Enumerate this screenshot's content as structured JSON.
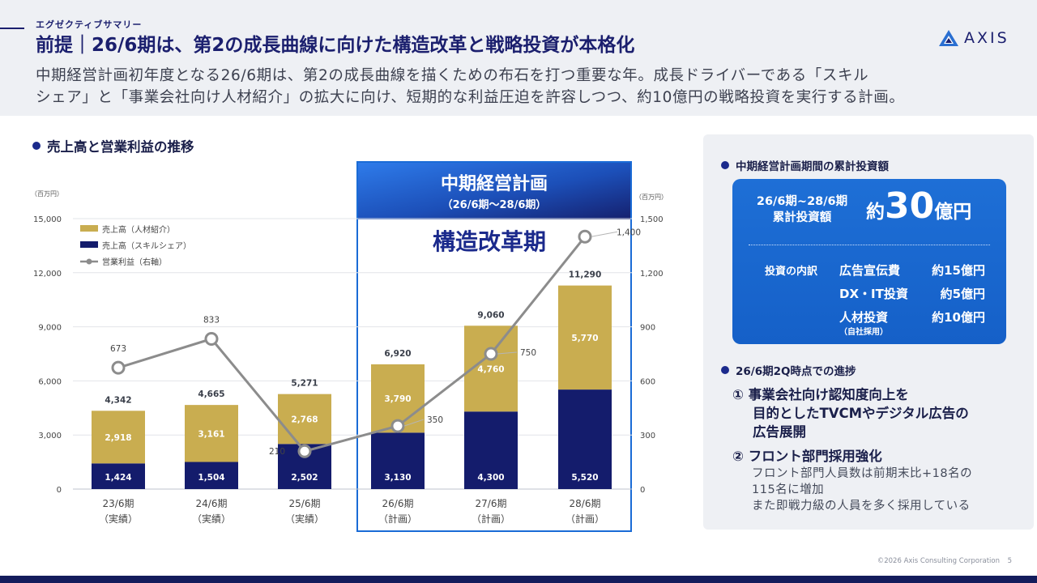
{
  "header": {
    "section_label": "エグゼクティブサマリー",
    "title": "前提｜26/6期は、第2の成長曲線に向けた構造改革と戦略投資が本格化",
    "subtitle_line1": "中期経営計画初年度となる26/6期は、第2の成長曲線を描くための布石を打つ重要な年。成長ドライバーである「スキル",
    "subtitle_line2": "シェア」と「事業会社向け人材紹介」の拡大に向け、短期的な利益圧迫を許容しつつ、約10億円の戦略投資を実行する計画。"
  },
  "logo": {
    "text": "AXIS",
    "icon": "axis-triangle-logo"
  },
  "chart_heading": "売上高と営業利益の推移",
  "chart_data": {
    "type": "bar",
    "categories": [
      "23/6期",
      "24/6期",
      "25/6期",
      "26/6期",
      "27/6期",
      "28/6期"
    ],
    "category_sublabels": [
      "（実績）",
      "（実績）",
      "（実績）",
      "（計画）",
      "（計画）",
      "（計画）"
    ],
    "stacked": true,
    "series": [
      {
        "name": "売上高（スキルシェア）",
        "type": "bar",
        "color": "#141c6c",
        "values": [
          1424,
          1504,
          2502,
          3130,
          4300,
          5520
        ]
      },
      {
        "name": "売上高（人材紹介）",
        "type": "bar",
        "color": "#c9ad50",
        "values": [
          2918,
          3161,
          2768,
          3790,
          4760,
          5770
        ]
      },
      {
        "name": "営業利益（右軸）",
        "type": "line",
        "axis": "right",
        "color": "#8c8c8c",
        "values": [
          673,
          833,
          210,
          350,
          750,
          1400
        ]
      }
    ],
    "totals": [
      4342,
      4665,
      5271,
      6920,
      9060,
      11290
    ],
    "left_axis": {
      "unit": "（百万円）",
      "ticks": [
        "15,000",
        "12,000",
        "9,000",
        "6,000",
        "3,000",
        "0"
      ],
      "ylim": [
        0,
        15000
      ]
    },
    "right_axis": {
      "unit": "（百万円）",
      "ticks": [
        "1,500",
        "1,200",
        "900",
        "600",
        "300",
        "0"
      ],
      "ylim": [
        0,
        1500
      ]
    },
    "legend_order": [
      "売上高（人材紹介）",
      "売上高（スキルシェア）",
      "営業利益（右軸）"
    ],
    "legend_position": "top-left",
    "grid": true,
    "highlight": {
      "title": "中期経営計画",
      "period": "（26/6期〜28/6期）",
      "caption": "構造改革期",
      "categories": [
        "26/6期",
        "27/6期",
        "28/6期"
      ]
    }
  },
  "side_panel": {
    "investment_heading": "中期経営計画期間の累計投資額",
    "period_line1": "26/6期~28/6期",
    "period_line2": "累計投資額",
    "total_prefix": "約",
    "total_number": "30",
    "total_suffix": "億円",
    "breakdown_label": "投資の内訳",
    "items": [
      {
        "label": "広告宣伝費",
        "amount": "約15億円"
      },
      {
        "label": "DX・IT投資",
        "amount": "約5億円"
      },
      {
        "label": "人材投資",
        "amount": "約10億円"
      }
    ],
    "item_note": "（自社採用）",
    "progress_heading": "26/6期2Q時点での進捗",
    "progress_1_line1": "① 事業会社向け認知度向上を",
    "progress_1_line2": "目的としたTVCMやデジタル広告の",
    "progress_1_line3": "広告展開",
    "progress_2_title": "② フロント部門採用強化",
    "progress_2_body1": "フロント部門人員数は前期末比+18名の",
    "progress_2_body2": "115名に増加",
    "progress_2_body3": "また即戦力級の人員を多く採用している"
  },
  "footer": {
    "copyright": "©2026 Axis Consulting Corporation",
    "page": "5"
  }
}
